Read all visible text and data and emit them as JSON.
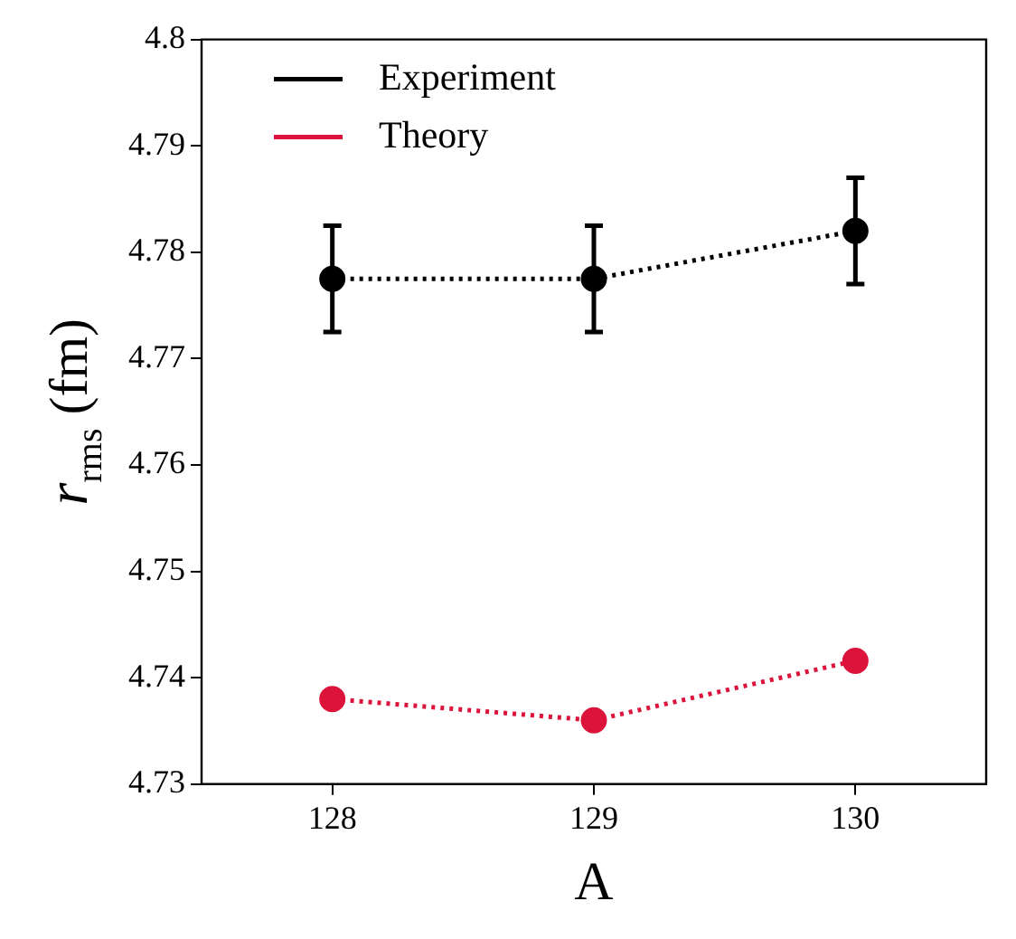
{
  "chart_data": {
    "type": "line",
    "xlabel": "A",
    "ylabel": "r$_{rms}$ (fm)",
    "x": [
      128,
      129,
      130
    ],
    "series": [
      {
        "name": "Experiment",
        "color": "#000000",
        "values": [
          4.7775,
          4.7775,
          4.782
        ],
        "errors": [
          0.005,
          0.005,
          0.005
        ]
      },
      {
        "name": "Theory",
        "color": "#dc143c",
        "values": [
          4.738,
          4.736,
          4.7416
        ]
      }
    ],
    "xlim": [
      127.5,
      130.5
    ],
    "xticks": [
      128,
      129,
      130
    ],
    "ylim": [
      4.73,
      4.8
    ],
    "yticks": [
      4.73,
      4.74,
      4.75,
      4.76,
      4.77,
      4.78,
      4.79,
      4.8
    ],
    "grid": false,
    "legend": "top left",
    "marker": "circle",
    "line_style": "dotted"
  }
}
